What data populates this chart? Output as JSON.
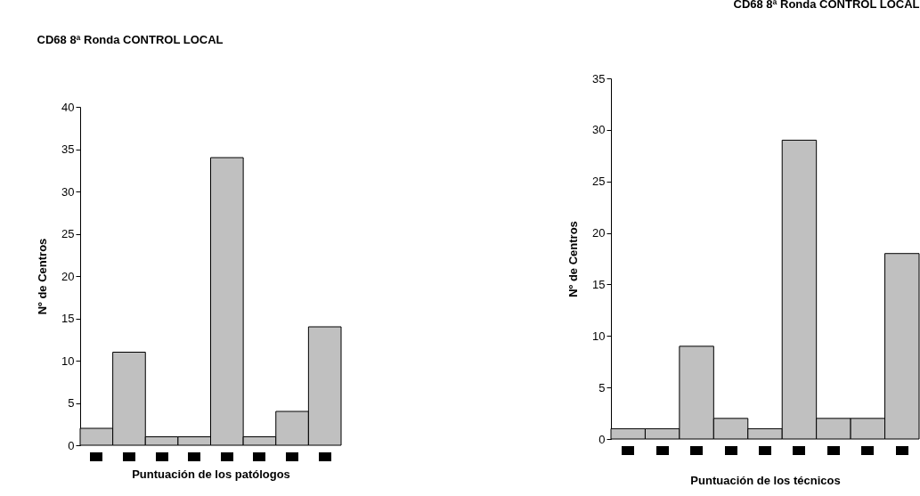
{
  "chart_data": [
    {
      "type": "bar",
      "title": "CD68 8ª Ronda CONTROL LOCAL",
      "xlabel": "Puntuación de los patólogos",
      "ylabel": "Nº de Centros",
      "categories": [
        null,
        null,
        null,
        null,
        null,
        null,
        null,
        null
      ],
      "values": [
        2,
        11,
        1,
        1,
        34,
        1,
        4,
        14
      ],
      "color": "#c0c0c0",
      "ylim": [
        0,
        40
      ],
      "yticks": [
        0,
        5,
        10,
        15,
        20,
        25,
        30,
        35,
        40
      ],
      "grid": false
    },
    {
      "type": "bar",
      "title": "CD68 8ª Ronda CONTROL LOCAL",
      "xlabel": "Puntuación de los técnicos",
      "ylabel": "Nº de Centros",
      "categories": [
        null,
        null,
        null,
        null,
        null,
        null,
        null,
        null,
        null
      ],
      "values": [
        1,
        1,
        9,
        2,
        1,
        29,
        2,
        2,
        18
      ],
      "color": "#c0c0c0",
      "ylim": [
        0,
        35
      ],
      "yticks": [
        0,
        5,
        10,
        15,
        20,
        25,
        30,
        35
      ],
      "grid": false
    }
  ]
}
